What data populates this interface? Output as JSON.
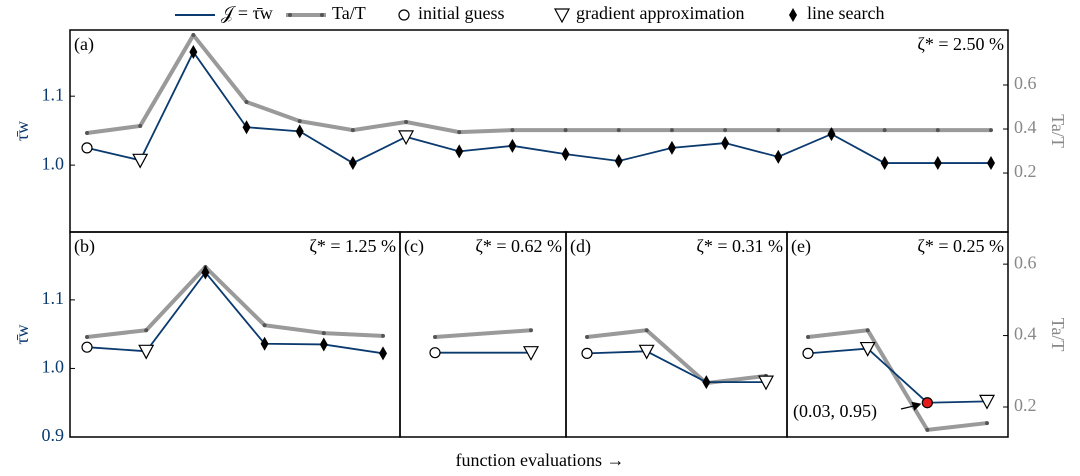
{
  "chart_data": {
    "type": "line",
    "xlabel": "function evaluations →",
    "ylabel": "τ̄w",
    "y2label": "Ta/T",
    "series": [
      {
        "name": "𝒥 = τ̄w",
        "color": "#0b3a6e"
      },
      {
        "name": "Ta/T",
        "color": "#9a9a9a",
        "axis": "y2"
      }
    ],
    "markers": [
      {
        "name": "initial guess",
        "shape": "o"
      },
      {
        "name": "gradient approximation",
        "shape": "v"
      },
      {
        "name": "line search",
        "shape": "d"
      }
    ],
    "panels": [
      {
        "label": "(a)",
        "note": "ζ* = 2.50 %",
        "ylim": [
          0.903,
          1.196
        ],
        "yticks": [
          {
            "value": 1.0,
            "label": "1.0"
          },
          1.1
        ],
        "y2lim": [
          -0.068,
          0.85
        ],
        "y2ticks": [
          0.2,
          0.4,
          0.6
        ],
        "values": [
          1.025,
          1.007,
          1.164,
          1.055,
          1.049,
          1.003,
          1.041,
          1.02,
          1.028,
          1.016,
          1.006,
          1.025,
          1.032,
          1.012,
          1.045,
          1.003,
          1.003,
          1.003
        ],
        "values2": [
          0.382,
          0.414,
          0.827,
          0.523,
          0.436,
          0.395,
          0.432,
          0.386,
          0.395,
          0.395,
          0.395,
          0.395,
          0.395,
          0.395,
          0.395,
          0.395,
          0.395,
          0.395
        ],
        "shapes": [
          "o",
          "v",
          "d",
          "d",
          "d",
          "d",
          "v",
          "d",
          "d",
          "d",
          "d",
          "d",
          "d",
          "d",
          "d",
          "d",
          "d",
          "d"
        ]
      },
      {
        "label": "(b)",
        "note": "ζ* = 1.25 %",
        "ylim": [
          0.9,
          1.199
        ],
        "yticks": [
          {
            "value": 0.9,
            "label": "0.9"
          },
          {
            "value": 1.0,
            "label": "1.0"
          },
          1.1
        ],
        "y2lim": [
          0.116,
          0.69
        ],
        "values": [
          1.031,
          1.025,
          1.14,
          1.036,
          1.035,
          1.022
        ],
        "values2": [
          0.396,
          0.415,
          0.592,
          0.429,
          0.407,
          0.399
        ],
        "shapes": [
          "o",
          "v",
          "d",
          "d",
          "d",
          "d"
        ]
      },
      {
        "label": "(c)",
        "note": "ζ* = 0.62 %",
        "ylim": [
          0.9,
          1.199
        ],
        "y2lim": [
          0.116,
          0.69
        ],
        "values": [
          1.023,
          1.023
        ],
        "values2": [
          0.396,
          0.415
        ],
        "shapes": [
          "o",
          "v"
        ]
      },
      {
        "label": "(d)",
        "note": "ζ* = 0.31 %",
        "ylim": [
          0.9,
          1.199
        ],
        "y2lim": [
          0.116,
          0.69
        ],
        "values": [
          1.022,
          1.025,
          0.98,
          0.98
        ],
        "values2": [
          0.396,
          0.415,
          0.267,
          0.287
        ],
        "shapes": [
          "o",
          "v",
          "d",
          "v"
        ]
      },
      {
        "label": "(e)",
        "note": "ζ* = 0.25 %",
        "ylim": [
          0.9,
          1.199
        ],
        "y2lim": [
          0.116,
          0.69
        ],
        "y2ticks": [
          0.2,
          0.4,
          0.6
        ],
        "values": [
          1.022,
          1.029,
          0.95,
          0.952
        ],
        "values2": [
          0.396,
          0.415,
          0.136,
          0.155
        ],
        "shapes": [
          "o",
          "v",
          "r",
          "v"
        ],
        "annotation": "(0.03, 0.95)"
      }
    ]
  }
}
